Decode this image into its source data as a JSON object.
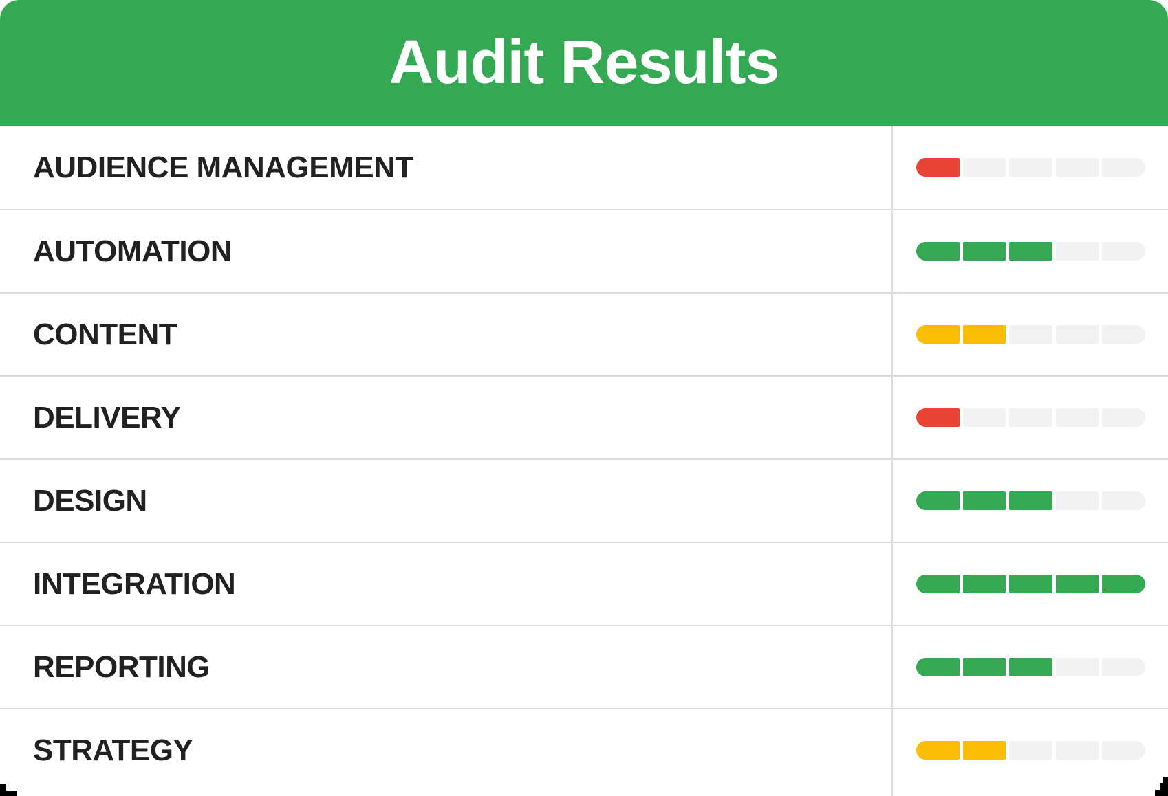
{
  "header": {
    "title": "Audit Results",
    "background_color": "#34A853",
    "text_color": "#FFFFFF"
  },
  "table": {
    "max_score": 5,
    "empty_segment_color": "#F2F2F2",
    "divider_color": "#DCDCDC",
    "label_color": "#212121",
    "rows": [
      {
        "label": "AUDIENCE MANAGEMENT",
        "score": 1,
        "status": "red",
        "status_color": "#E84335"
      },
      {
        "label": "AUTOMATION",
        "score": 3,
        "status": "green",
        "status_color": "#34A853"
      },
      {
        "label": "CONTENT",
        "score": 2,
        "status": "yellow",
        "status_color": "#FBBC04"
      },
      {
        "label": "DELIVERY",
        "score": 1,
        "status": "red",
        "status_color": "#E84335"
      },
      {
        "label": "DESIGN",
        "score": 3,
        "status": "green",
        "status_color": "#34A853"
      },
      {
        "label": "INTEGRATION",
        "score": 5,
        "status": "green",
        "status_color": "#34A853"
      },
      {
        "label": "REPORTING",
        "score": 3,
        "status": "green",
        "status_color": "#34A853"
      },
      {
        "label": "STRATEGY",
        "score": 2,
        "status": "yellow",
        "status_color": "#FBBC04"
      }
    ]
  },
  "chart_data": {
    "type": "bar",
    "title": "Audit Results",
    "categories": [
      "AUDIENCE MANAGEMENT",
      "AUTOMATION",
      "CONTENT",
      "DELIVERY",
      "DESIGN",
      "INTEGRATION",
      "REPORTING",
      "STRATEGY"
    ],
    "values": [
      1,
      3,
      2,
      1,
      3,
      5,
      3,
      2
    ],
    "value_range": [
      0,
      5
    ],
    "segment_colors": [
      "#E84335",
      "#34A853",
      "#FBBC04",
      "#E84335",
      "#34A853",
      "#34A853",
      "#34A853",
      "#FBBC04"
    ],
    "legend": "none",
    "orientation": "horizontal",
    "notes": "Each category rated on a 5-segment scale; filled segments colored red (1), yellow (2) or green (3+), remainder light gray"
  }
}
